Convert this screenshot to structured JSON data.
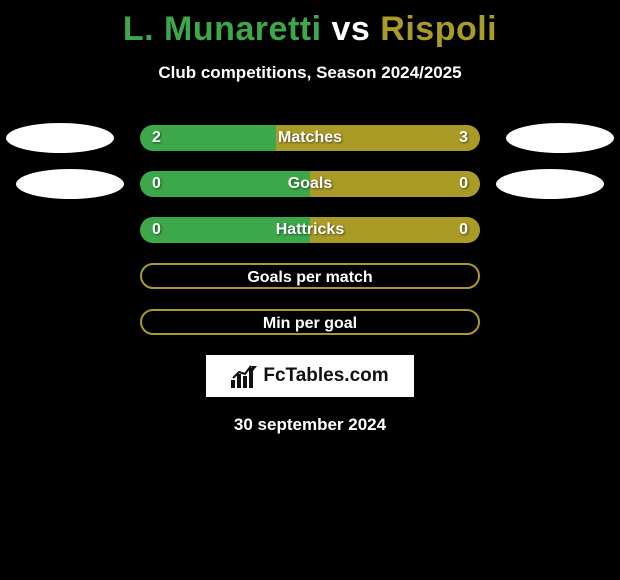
{
  "title": {
    "player1": "L. Munaretti",
    "vs": "vs",
    "player2": "Rispoli"
  },
  "subtitle": "Club competitions, Season 2024/2025",
  "colors": {
    "player1": "#3ca84a",
    "player2": "#aa9b27",
    "background": "#000000",
    "text": "#ffffff",
    "ellipse": "#ffffff"
  },
  "stats": [
    {
      "label": "Matches",
      "left_value": "2",
      "right_value": "3",
      "left_pct": 40,
      "right_pct": 60,
      "show_values": true,
      "show_ellipses": true,
      "ellipse_class": ""
    },
    {
      "label": "Goals",
      "left_value": "0",
      "right_value": "0",
      "left_pct": 50,
      "right_pct": 50,
      "show_values": true,
      "show_ellipses": true,
      "ellipse_class": "2"
    },
    {
      "label": "Hattricks",
      "left_value": "0",
      "right_value": "0",
      "left_pct": 50,
      "right_pct": 50,
      "show_values": true,
      "show_ellipses": false,
      "ellipse_class": ""
    },
    {
      "label": "Goals per match",
      "left_value": "",
      "right_value": "",
      "left_pct": 0,
      "right_pct": 0,
      "show_values": false,
      "show_ellipses": false,
      "outline_only": true
    },
    {
      "label": "Min per goal",
      "left_value": "",
      "right_value": "",
      "left_pct": 0,
      "right_pct": 0,
      "show_values": false,
      "show_ellipses": false,
      "outline_only": true
    }
  ],
  "brand": "FcTables.com",
  "date": "30 september 2024"
}
